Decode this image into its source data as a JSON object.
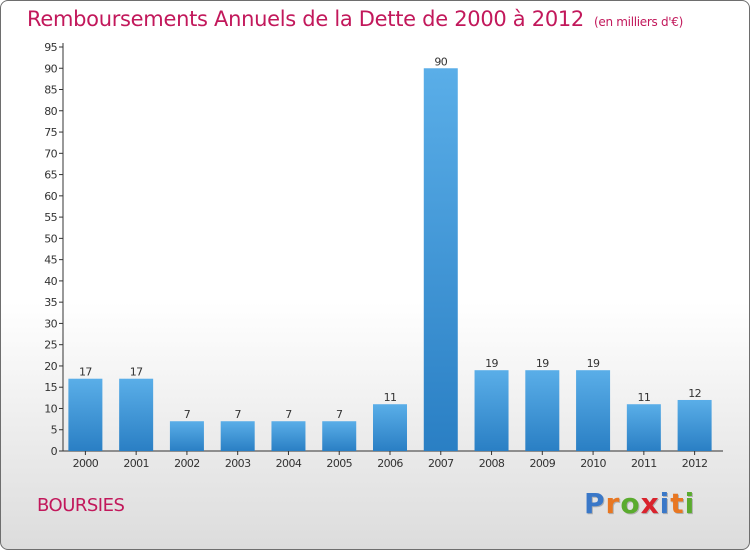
{
  "header": {
    "title": "Remboursements Annuels de la Dette de 2000 à 2012",
    "unit": "(en milliers d'€)"
  },
  "footer": {
    "commune": "BOURSIES",
    "logo_letters": [
      "P",
      "r",
      "o",
      "x",
      "i",
      "t",
      "i"
    ]
  },
  "colors": {
    "title": "#c2185b",
    "bar_top": "#5aaee8",
    "bar_bottom": "#2a7fc4",
    "logo": [
      "#3a78c8",
      "#e87722",
      "#5aab2e",
      "#d9232d",
      "#3a78c8",
      "#e87722",
      "#5aab2e"
    ]
  },
  "chart_data": {
    "type": "bar",
    "categories": [
      "2000",
      "2001",
      "2002",
      "2003",
      "2004",
      "2005",
      "2006",
      "2007",
      "2008",
      "2009",
      "2010",
      "2011",
      "2012"
    ],
    "values": [
      17,
      17,
      7,
      7,
      7,
      7,
      11,
      90,
      19,
      19,
      19,
      11,
      12
    ],
    "title": "Remboursements Annuels de la Dette de 2000 à 2012",
    "ylim": [
      0,
      95
    ],
    "yticks": [
      0,
      5,
      10,
      15,
      20,
      25,
      30,
      35,
      40,
      45,
      50,
      55,
      60,
      65,
      70,
      75,
      80,
      85,
      90,
      95
    ],
    "grid": false,
    "data_labels": true
  }
}
